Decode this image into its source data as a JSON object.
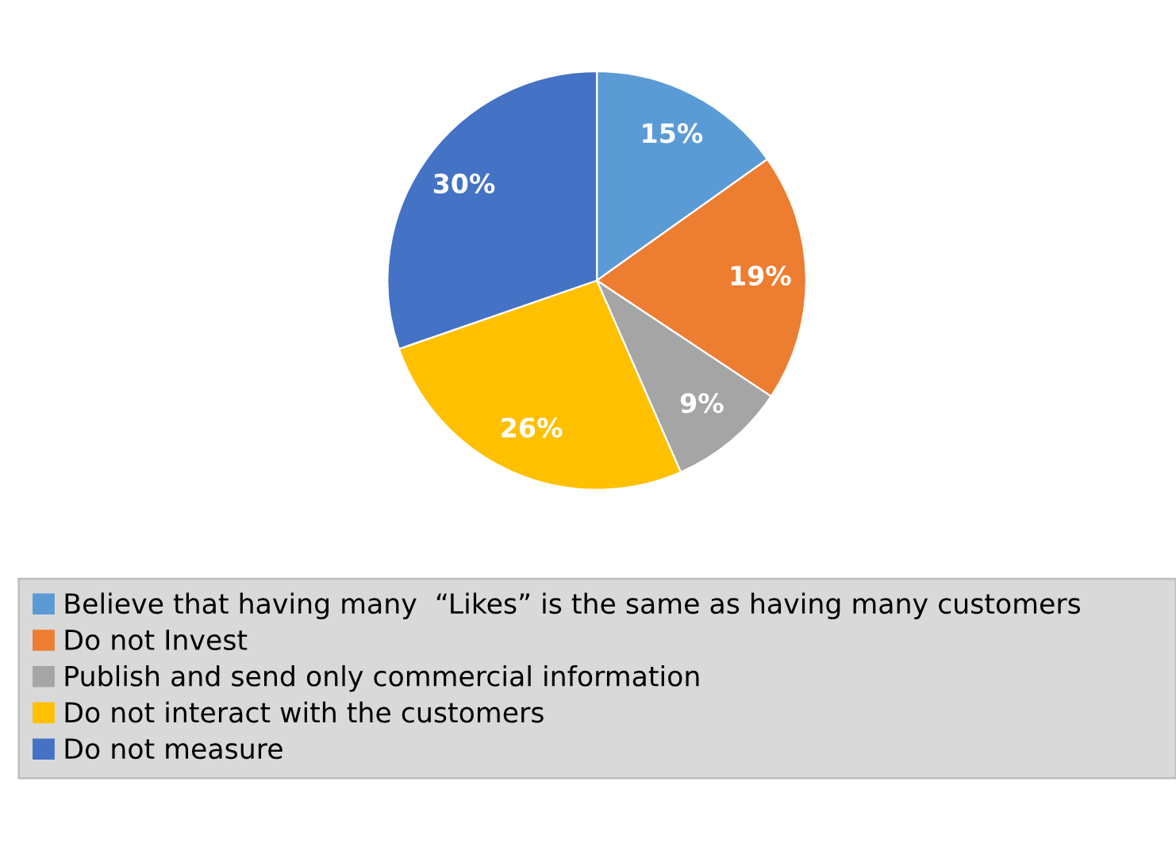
{
  "chart_data": {
    "type": "pie",
    "categories": [
      "Believe that having many  “Likes” is the same as having many customers",
      "Do not Invest",
      "Publish and send only commercial information",
      "Do not interact with the customers",
      "Do not measure"
    ],
    "values": [
      15,
      19,
      9,
      26,
      30
    ],
    "value_labels": [
      "15%",
      "19%",
      "9%",
      "26%",
      "30%"
    ],
    "colors": [
      "#5b9bd5",
      "#ed7d31",
      "#a5a5a5",
      "#ffc000",
      "#4472c4"
    ],
    "legend": "bottom"
  }
}
